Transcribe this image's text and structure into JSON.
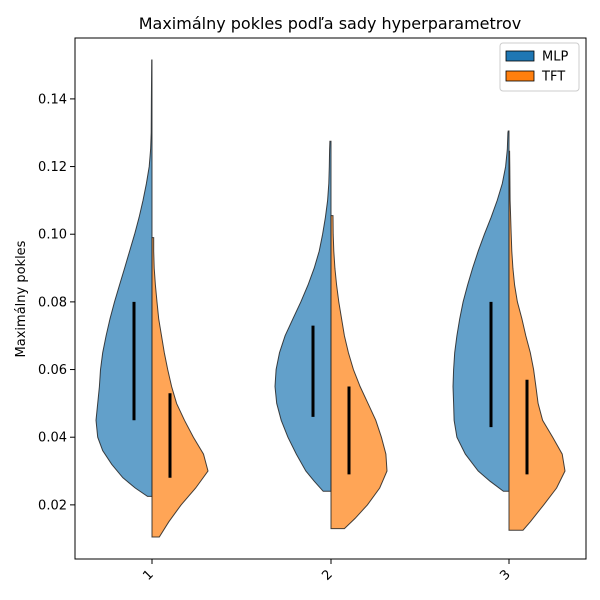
{
  "chart_data": {
    "type": "violin",
    "title": "Maximálny pokles podľa sady hyperparametrov",
    "ylabel": "Maximálny pokles",
    "xlabel": "",
    "categories": [
      "1",
      "2",
      "3"
    ],
    "ylim": [
      0.004,
      0.158
    ],
    "yticks": [
      0.02,
      0.04,
      0.06,
      0.08,
      0.1,
      0.12,
      0.14
    ],
    "ytick_labels": [
      "0.02",
      "0.04",
      "0.06",
      "0.08",
      "0.10",
      "0.12",
      "0.14"
    ],
    "legend": {
      "position": "top-right",
      "entries": [
        "MLP",
        "TFT"
      ]
    },
    "grid": false,
    "series": [
      {
        "name": "MLP",
        "color": "#1f77b4",
        "side": "left",
        "violins": [
          {
            "category": "1",
            "min": 0.0225,
            "max": 0.1515,
            "q1": 0.045,
            "q3": 0.08,
            "profile": [
              [
                0.0225,
                0.08
              ],
              [
                0.025,
                0.3
              ],
              [
                0.028,
                0.52
              ],
              [
                0.032,
                0.72
              ],
              [
                0.036,
                0.88
              ],
              [
                0.04,
                0.97
              ],
              [
                0.045,
                1.0
              ],
              [
                0.05,
                0.97
              ],
              [
                0.055,
                0.94
              ],
              [
                0.06,
                0.92
              ],
              [
                0.065,
                0.88
              ],
              [
                0.07,
                0.82
              ],
              [
                0.075,
                0.75
              ],
              [
                0.08,
                0.67
              ],
              [
                0.085,
                0.58
              ],
              [
                0.09,
                0.49
              ],
              [
                0.095,
                0.4
              ],
              [
                0.1,
                0.31
              ],
              [
                0.105,
                0.23
              ],
              [
                0.11,
                0.16
              ],
              [
                0.115,
                0.1
              ],
              [
                0.12,
                0.05
              ],
              [
                0.125,
                0.025
              ],
              [
                0.13,
                0.015
              ],
              [
                0.14,
                0.01
              ],
              [
                0.1515,
                0.005
              ]
            ]
          },
          {
            "category": "2",
            "min": 0.024,
            "max": 0.1275,
            "q1": 0.046,
            "q3": 0.073,
            "profile": [
              [
                0.024,
                0.14
              ],
              [
                0.027,
                0.3
              ],
              [
                0.03,
                0.45
              ],
              [
                0.035,
                0.62
              ],
              [
                0.04,
                0.77
              ],
              [
                0.045,
                0.89
              ],
              [
                0.05,
                0.97
              ],
              [
                0.055,
                1.0
              ],
              [
                0.06,
                0.98
              ],
              [
                0.065,
                0.92
              ],
              [
                0.07,
                0.82
              ],
              [
                0.075,
                0.68
              ],
              [
                0.08,
                0.54
              ],
              [
                0.085,
                0.41
              ],
              [
                0.09,
                0.3
              ],
              [
                0.095,
                0.21
              ],
              [
                0.1,
                0.15
              ],
              [
                0.105,
                0.1
              ],
              [
                0.11,
                0.06
              ],
              [
                0.115,
                0.04
              ],
              [
                0.12,
                0.03
              ],
              [
                0.125,
                0.025
              ],
              [
                0.1275,
                0.02
              ]
            ]
          },
          {
            "category": "3",
            "min": 0.024,
            "max": 0.1305,
            "q1": 0.043,
            "q3": 0.08,
            "profile": [
              [
                0.024,
                0.1
              ],
              [
                0.027,
                0.34
              ],
              [
                0.03,
                0.55
              ],
              [
                0.035,
                0.78
              ],
              [
                0.04,
                0.93
              ],
              [
                0.045,
                0.98
              ],
              [
                0.05,
                0.99
              ],
              [
                0.055,
                1.0
              ],
              [
                0.06,
                0.99
              ],
              [
                0.065,
                0.97
              ],
              [
                0.07,
                0.93
              ],
              [
                0.075,
                0.88
              ],
              [
                0.08,
                0.82
              ],
              [
                0.085,
                0.74
              ],
              [
                0.09,
                0.65
              ],
              [
                0.095,
                0.55
              ],
              [
                0.1,
                0.44
              ],
              [
                0.105,
                0.32
              ],
              [
                0.11,
                0.21
              ],
              [
                0.115,
                0.12
              ],
              [
                0.12,
                0.06
              ],
              [
                0.125,
                0.03
              ],
              [
                0.13,
                0.02
              ],
              [
                0.1305,
                0.015
              ]
            ]
          }
        ]
      },
      {
        "name": "TFT",
        "color": "#ff7f0e",
        "side": "right",
        "violins": [
          {
            "category": "1",
            "min": 0.0105,
            "max": 0.099,
            "q1": 0.028,
            "q3": 0.053,
            "profile": [
              [
                0.0105,
                0.13
              ],
              [
                0.015,
                0.3
              ],
              [
                0.02,
                0.52
              ],
              [
                0.025,
                0.78
              ],
              [
                0.03,
                1.0
              ],
              [
                0.035,
                0.92
              ],
              [
                0.04,
                0.74
              ],
              [
                0.045,
                0.58
              ],
              [
                0.05,
                0.44
              ],
              [
                0.055,
                0.35
              ],
              [
                0.06,
                0.28
              ],
              [
                0.065,
                0.22
              ],
              [
                0.07,
                0.17
              ],
              [
                0.075,
                0.12
              ],
              [
                0.08,
                0.09
              ],
              [
                0.085,
                0.06
              ],
              [
                0.09,
                0.04
              ],
              [
                0.095,
                0.03
              ],
              [
                0.099,
                0.03
              ]
            ]
          },
          {
            "category": "2",
            "min": 0.013,
            "max": 0.1055,
            "q1": 0.029,
            "q3": 0.055,
            "profile": [
              [
                0.013,
                0.24
              ],
              [
                0.016,
                0.43
              ],
              [
                0.02,
                0.65
              ],
              [
                0.025,
                0.87
              ],
              [
                0.03,
                1.0
              ],
              [
                0.035,
                0.98
              ],
              [
                0.04,
                0.9
              ],
              [
                0.045,
                0.8
              ],
              [
                0.05,
                0.66
              ],
              [
                0.055,
                0.52
              ],
              [
                0.06,
                0.4
              ],
              [
                0.065,
                0.31
              ],
              [
                0.07,
                0.24
              ],
              [
                0.075,
                0.19
              ],
              [
                0.08,
                0.14
              ],
              [
                0.085,
                0.1
              ],
              [
                0.09,
                0.07
              ],
              [
                0.095,
                0.05
              ],
              [
                0.1,
                0.04
              ],
              [
                0.1055,
                0.035
              ]
            ]
          },
          {
            "category": "3",
            "min": 0.0125,
            "max": 0.1245,
            "q1": 0.029,
            "q3": 0.057,
            "profile": [
              [
                0.0125,
                0.25
              ],
              [
                0.015,
                0.38
              ],
              [
                0.02,
                0.62
              ],
              [
                0.025,
                0.85
              ],
              [
                0.03,
                1.0
              ],
              [
                0.035,
                0.95
              ],
              [
                0.04,
                0.78
              ],
              [
                0.045,
                0.6
              ],
              [
                0.05,
                0.52
              ],
              [
                0.055,
                0.48
              ],
              [
                0.06,
                0.44
              ],
              [
                0.065,
                0.38
              ],
              [
                0.07,
                0.3
              ],
              [
                0.075,
                0.23
              ],
              [
                0.08,
                0.15
              ],
              [
                0.085,
                0.1
              ],
              [
                0.09,
                0.07
              ],
              [
                0.095,
                0.05
              ],
              [
                0.1,
                0.04
              ],
              [
                0.11,
                0.02
              ],
              [
                0.12,
                0.015
              ],
              [
                0.1245,
                0.01
              ]
            ]
          }
        ]
      }
    ]
  }
}
